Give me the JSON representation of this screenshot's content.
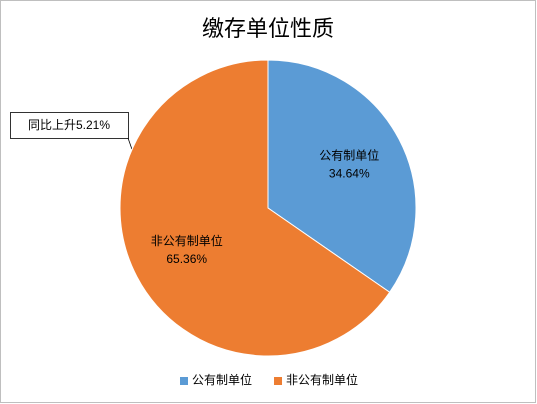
{
  "chart_data": {
    "type": "pie",
    "title": "缴存单位性质",
    "categories": [
      "公有制单位",
      "非公有制单位"
    ],
    "values": [
      34.64,
      65.36
    ],
    "value_labels": [
      "34.64%",
      "65.36%"
    ],
    "colors": [
      "#5b9bd5",
      "#ed7d31"
    ],
    "annotation": "同比上升5.21%",
    "legend": "bottom"
  }
}
